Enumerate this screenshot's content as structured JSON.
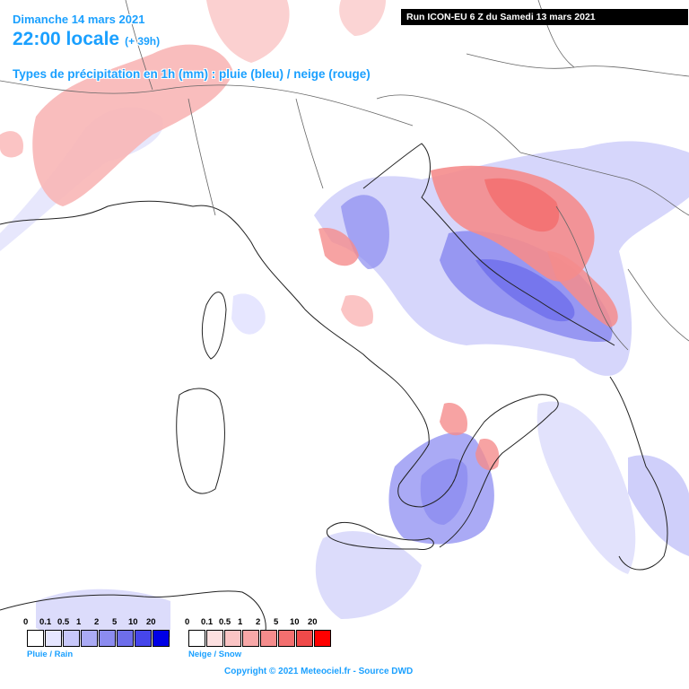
{
  "header": {
    "date": "Dimanche 14 mars 2021",
    "time": "22:00 locale",
    "lead": "(+ 39h)",
    "subtitle": "Types de précipitation en 1h (mm) : pluie (bleu) / neige (rouge)",
    "run": "Run ICON-EU 6 Z du Samedi 13 mars 2021"
  },
  "legend": {
    "rain": {
      "label": "Pluie / Rain",
      "ticks": [
        "0",
        "0.1",
        "0.5",
        "1",
        "2",
        "5",
        "10",
        "20"
      ],
      "colors": [
        "#ffffff",
        "#e6e6ff",
        "#c8c8fa",
        "#aaaaf5",
        "#8c8cf0",
        "#6e6eeb",
        "#4646eb",
        "#0000e6"
      ]
    },
    "snow": {
      "label": "Neige / Snow",
      "ticks": [
        "0",
        "0.1",
        "0.5",
        "1",
        "2",
        "5",
        "10",
        "20"
      ],
      "colors": [
        "#ffffff",
        "#fde0e0",
        "#fbc4c4",
        "#f8a8a8",
        "#f58c8c",
        "#f36f6f",
        "#f04a4a",
        "#ff0000"
      ]
    }
  },
  "copyright": "Copyright © 2021 Meteociel.fr - Source DWD",
  "colors": {
    "title": "#1aa0ff",
    "rain_light": "#c8c8fa",
    "rain_mid": "#8c8cf0",
    "rain_strong": "#6e6eeb",
    "snow_light": "#fbc4c4",
    "snow_mid": "#f58c8c",
    "snow_strong": "#f36f6f",
    "border": "#666666",
    "coast": "#222222"
  }
}
